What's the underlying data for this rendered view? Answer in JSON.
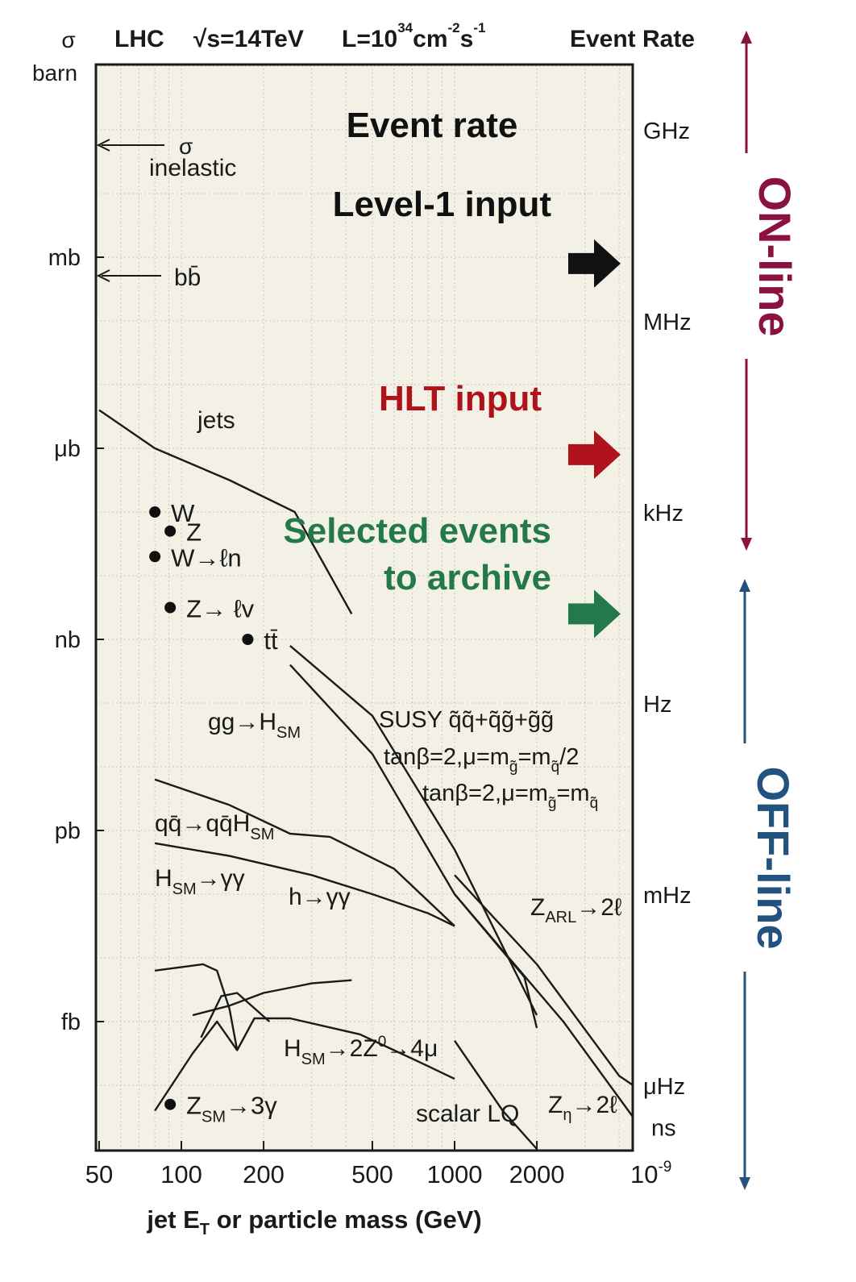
{
  "chart_data": {
    "type": "line",
    "header": {
      "sigma": "σ",
      "barn": "barn",
      "lhc": "LHC",
      "energy": "√s=14TeV",
      "lumi_base": "L=10",
      "lumi_exp": "34",
      "lumi_cm": "cm",
      "lumi_cm_exp": "-2",
      "lumi_s": "s",
      "lumi_s_exp": "-1",
      "event_rate_header": "Event Rate"
    },
    "xlabel_main": "jet E",
    "xlabel_sub": "T",
    "xlabel_rest": " or particle mass (GeV)",
    "x_scale": "log",
    "xlim": [
      50,
      4500
    ],
    "x_ticks": [
      {
        "value": 50,
        "label": "50"
      },
      {
        "value": 100,
        "label": "100"
      },
      {
        "value": 200,
        "label": "200"
      },
      {
        "value": 500,
        "label": "500"
      },
      {
        "value": 1000,
        "label": "1000"
      },
      {
        "value": 2000,
        "label": "2000"
      }
    ],
    "x_right_label": {
      "base": "10",
      "exp": "-9"
    },
    "y_scale": "log",
    "ylim_decade_exp": [
      -16.7,
      0.5
    ],
    "y_ticks_left": [
      {
        "exp": -3,
        "label": "mb"
      },
      {
        "exp": -6,
        "label": "μb"
      },
      {
        "exp": -9,
        "label": "nb"
      },
      {
        "exp": -12,
        "label": "pb"
      },
      {
        "exp": -15,
        "label": "fb"
      }
    ],
    "y_ticks_right": [
      {
        "exp": -1,
        "label": "GHz"
      },
      {
        "exp": -4,
        "label": "MHz"
      },
      {
        "exp": -7,
        "label": "kHz"
      },
      {
        "exp": -10,
        "label": "Hz"
      },
      {
        "exp": -13,
        "label": "mHz"
      },
      {
        "exp": -16,
        "label": "μHz"
      },
      {
        "exp": -16.65,
        "label": "ns"
      }
    ],
    "grid": true,
    "annotations": {
      "event_rate": "Event rate",
      "level1": "Level-1 input",
      "hlt": "HLT input",
      "selected_1": "Selected events",
      "selected_2": "to archive"
    },
    "online_label": "ON-line",
    "offline_label": "OFF-line",
    "arrow_marks": [
      {
        "name": "level1",
        "exp": -3.1,
        "color": "#111111"
      },
      {
        "name": "hlt",
        "exp": -6.1,
        "color": "#b0121b"
      },
      {
        "name": "selected",
        "exp": -8.6,
        "color": "#23794a"
      }
    ],
    "markers": [
      {
        "name": "sigma-inelastic",
        "label_sym": "σ",
        "label_text": "inelastic",
        "exp": -1.2
      },
      {
        "name": "bbbar",
        "label_text": "bb̄",
        "exp": -3.3
      }
    ],
    "points": [
      {
        "name": "W",
        "x": 80,
        "exp": -7.0,
        "label": "W"
      },
      {
        "name": "Z",
        "x": 91,
        "exp": -7.3,
        "label": "Z"
      },
      {
        "name": "W-to-ln",
        "x": 80,
        "exp": -7.7,
        "label": "W→ℓn"
      },
      {
        "name": "Z-to-lv",
        "x": 91,
        "exp": -8.5,
        "label": "Z→ ℓv"
      },
      {
        "name": "ttbar",
        "x": 175,
        "exp": -9.0,
        "label": "tt̄"
      },
      {
        "name": "Z-SM-3gamma",
        "x": 91,
        "exp": -16.3,
        "label": "Z",
        "sub": "SM",
        "tail": "→3γ"
      }
    ],
    "series": [
      {
        "name": "jets",
        "x": [
          50,
          80,
          150,
          260,
          420
        ],
        "exp": [
          -5.4,
          -6.0,
          -6.5,
          -7.0,
          -8.6
        ]
      },
      {
        "name": "SUSY-1",
        "x": [
          250,
          500,
          1000,
          2000
        ],
        "exp": [
          -9.1,
          -10.2,
          -12.3,
          -14.9
        ]
      },
      {
        "name": "SUSY-2",
        "x": [
          250,
          500,
          1000,
          1800,
          2000
        ],
        "exp": [
          -9.4,
          -10.8,
          -13.0,
          -14.3,
          -15.1
        ]
      },
      {
        "name": "gg-H",
        "x": [
          80,
          150,
          250,
          350,
          600,
          1000
        ],
        "exp": [
          -11.2,
          -11.6,
          -12.05,
          -12.1,
          -12.6,
          -13.5
        ]
      },
      {
        "name": "qq-qqH",
        "x": [
          80,
          150,
          300,
          500,
          800,
          1000
        ],
        "exp": [
          -12.2,
          -12.4,
          -12.7,
          -13.0,
          -13.3,
          -13.5
        ]
      },
      {
        "name": "H-gammagamma",
        "x": [
          80,
          120,
          135,
          150,
          160
        ],
        "exp": [
          -14.2,
          -14.1,
          -14.2,
          -14.8,
          -15.45
        ]
      },
      {
        "name": "h-gammagamma",
        "x": [
          110,
          150,
          200,
          300,
          420
        ],
        "exp": [
          -14.9,
          -14.75,
          -14.55,
          -14.4,
          -14.35
        ]
      },
      {
        "name": "H-2Z-4mu",
        "x": [
          80,
          110,
          135,
          160,
          185,
          250,
          450,
          600,
          800,
          1000
        ],
        "exp": [
          -16.4,
          -15.5,
          -15.0,
          -15.45,
          -14.95,
          -14.95,
          -15.2,
          -15.45,
          -15.7,
          -15.9
        ]
      },
      {
        "name": "H-ZZ-low",
        "x": [
          118,
          140,
          160,
          210
        ],
        "exp": [
          -15.25,
          -14.6,
          -14.55,
          -15.0
        ]
      },
      {
        "name": "Z-ARL",
        "x": [
          1000,
          2000,
          4000,
          4500
        ],
        "exp": [
          -12.7,
          -14.1,
          -15.85,
          -16.0
        ]
      },
      {
        "name": "Z-eta",
        "x": [
          1000,
          2500,
          4500
        ],
        "exp": [
          -13.0,
          -15.0,
          -16.5
        ]
      },
      {
        "name": "scalar-LQ",
        "x": [
          1000,
          1500,
          2000
        ],
        "exp": [
          -15.3,
          -16.4,
          -17.0
        ]
      }
    ],
    "curve_labels": {
      "jets": "jets",
      "gg": "gg",
      "arrow": "→",
      "H": "H",
      "SM": "SM",
      "qqbar": "qq̄",
      "qqH": "→qq̄H",
      "H_gg_tail": "→γγ",
      "h_gg": "h→γγ",
      "susy_line1": "SUSY q̃q̃+q̃g̃+g̃g̃",
      "susy_line2": "tanβ=2,μ=m",
      "susy_sub_g": "g̃",
      "susy_eq": "=m",
      "susy_sub_q": "q̃",
      "susy_half": "/2",
      "susy_line3": "tanβ=2,μ=m",
      "H2Z_mid": "→2Z",
      "H2Z_sup": "0",
      "H2Z_tail": "→4μ",
      "Z": "Z",
      "ARL": "ARL",
      "to2l": "→2ℓ",
      "eta": "η",
      "scalar_lq": "scalar LQ"
    },
    "colors": {
      "plot_bg": "#f3f1e6",
      "axis": "#1a1a1a",
      "grid": "#c8c6b9",
      "online": "#8a1240",
      "offline": "#23527f",
      "hlt": "#b0121b",
      "selected": "#23794a"
    }
  }
}
